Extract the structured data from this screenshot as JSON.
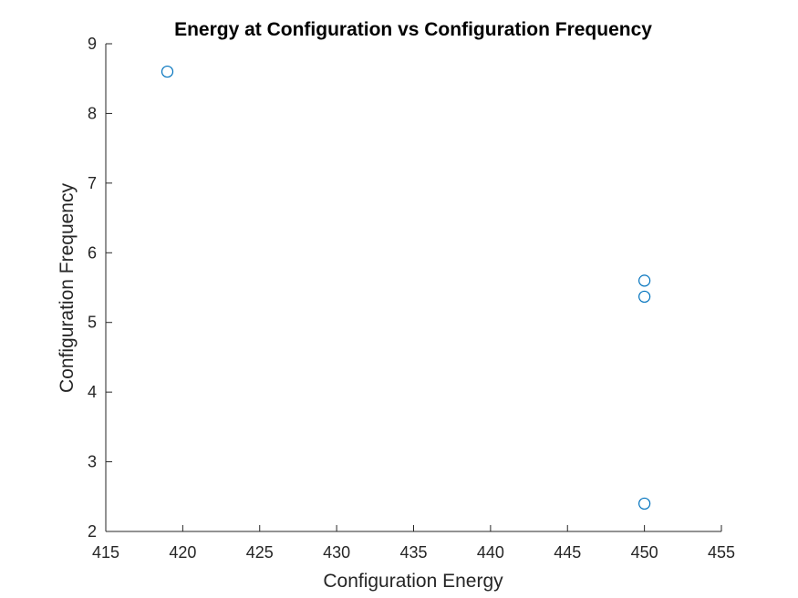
{
  "chart_data": {
    "type": "scatter",
    "title": "Energy at Configuration vs Configuration Frequency",
    "xlabel": "Configuration Energy",
    "ylabel": "Configuration Frequency",
    "xlim": [
      415,
      455
    ],
    "ylim": [
      2,
      9
    ],
    "xticks": [
      415,
      420,
      425,
      430,
      435,
      440,
      445,
      450,
      455
    ],
    "yticks": [
      2,
      3,
      4,
      5,
      6,
      7,
      8,
      9
    ],
    "grid": false,
    "marker": "circle",
    "series": [
      {
        "color": "#0072BD",
        "points": [
          {
            "x": 419,
            "y": 8.6
          },
          {
            "x": 450,
            "y": 5.6
          },
          {
            "x": 450,
            "y": 5.37
          },
          {
            "x": 450,
            "y": 2.4
          }
        ]
      }
    ]
  }
}
